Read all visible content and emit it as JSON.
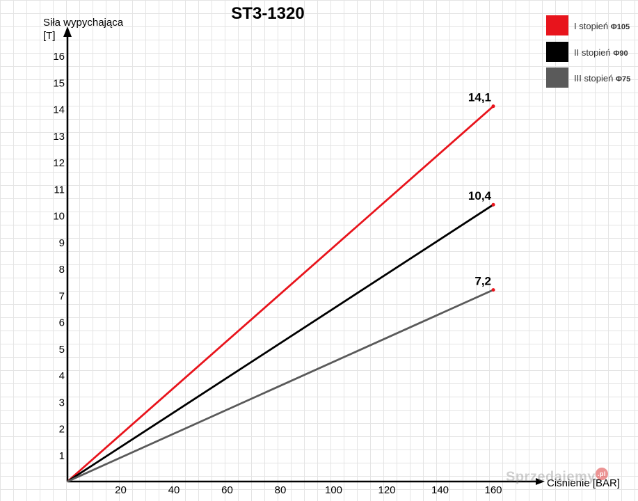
{
  "chart_data": {
    "type": "line",
    "title": "ST3-1320",
    "ylabel_line1": "Siła wypychająca",
    "ylabel_line2": "[T]",
    "xlabel": "Ciśnienie [BAR]",
    "xlim": [
      0,
      160
    ],
    "ylim": [
      0,
      16
    ],
    "x_ticks": [
      20,
      40,
      60,
      80,
      100,
      120,
      140,
      160
    ],
    "y_ticks": [
      1,
      2,
      3,
      4,
      5,
      6,
      7,
      8,
      9,
      10,
      11,
      12,
      13,
      14,
      15,
      16
    ],
    "grid": true,
    "legend_position": "top-right",
    "series": [
      {
        "name": "I stopień",
        "diameter": "Φ105",
        "color": "#e8141c",
        "x": [
          0,
          160
        ],
        "y": [
          0,
          14.1
        ],
        "end_label": "14,1"
      },
      {
        "name": "II stopień",
        "diameter": "Φ90",
        "color": "#000000",
        "x": [
          0,
          160
        ],
        "y": [
          0,
          10.4
        ],
        "end_label": "10,4"
      },
      {
        "name": "III stopień",
        "diameter": "Φ75",
        "color": "#5a5a5a",
        "x": [
          0,
          160
        ],
        "y": [
          0,
          7.2
        ],
        "end_label": "7,2"
      }
    ]
  },
  "watermark": {
    "text": "Sprzedajemy",
    "badge": ".pl"
  }
}
